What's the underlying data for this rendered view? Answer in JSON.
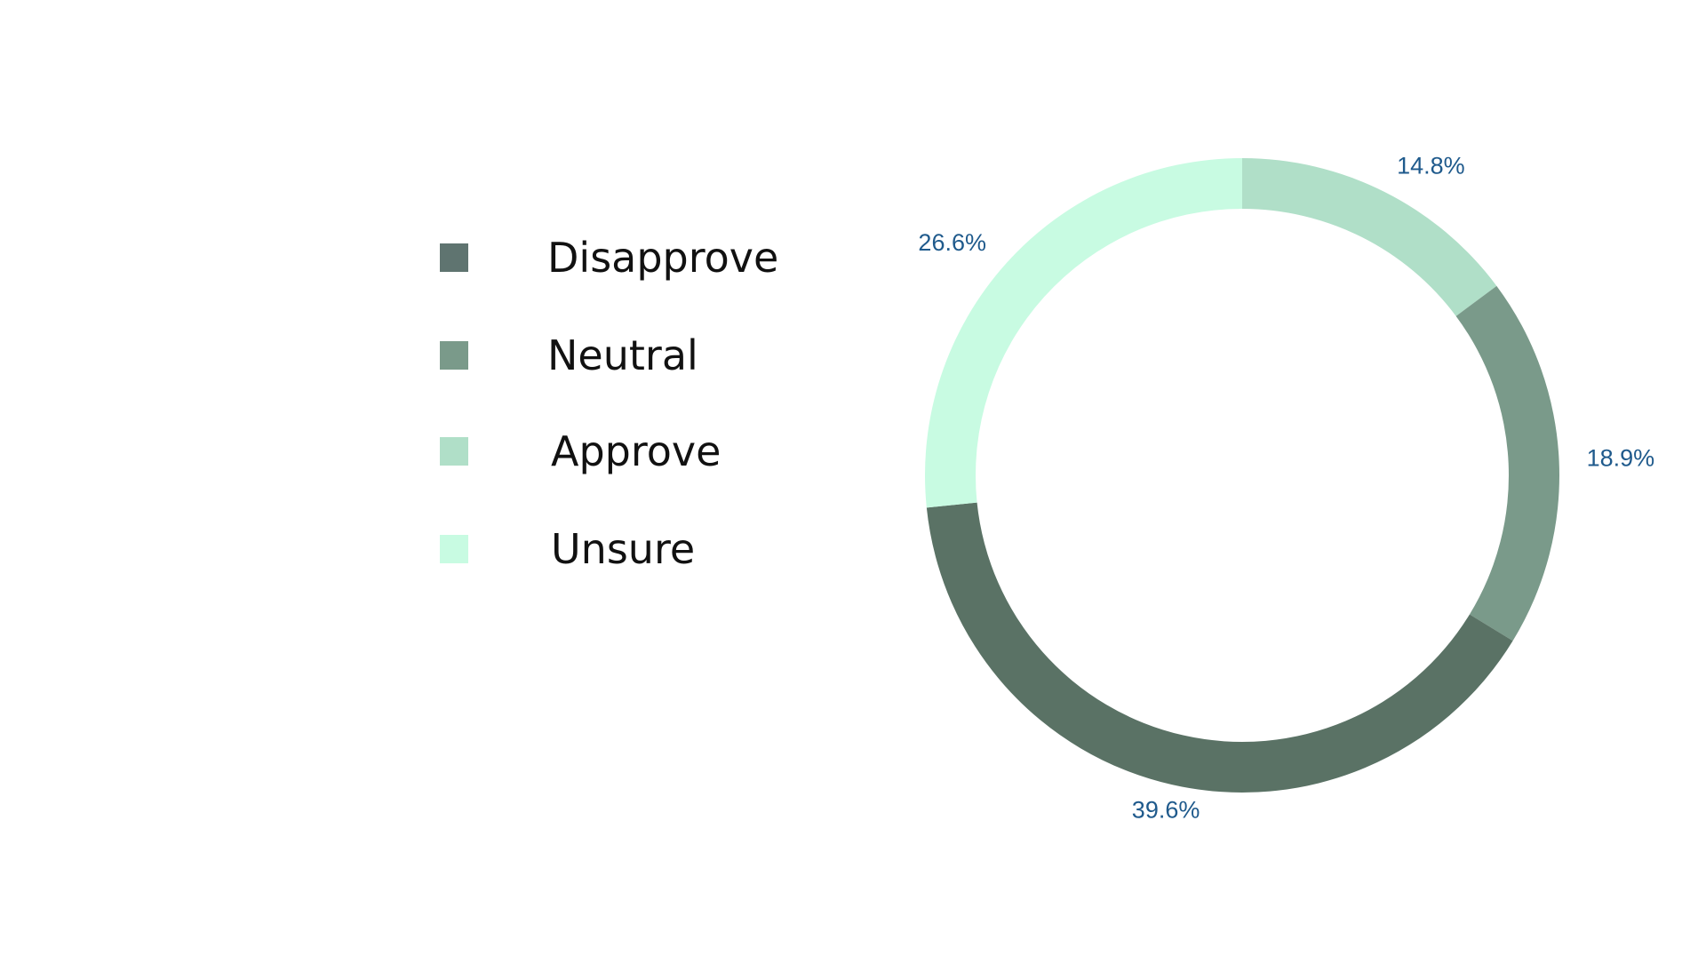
{
  "chart_data": {
    "type": "pie",
    "variant": "donut",
    "title": "",
    "categories": [
      "Disapprove",
      "Neutral",
      "Approve",
      "Unsure"
    ],
    "values": [
      39.6,
      18.9,
      14.8,
      26.6
    ],
    "value_labels": [
      "39.6%",
      "18.9%",
      "14.8%",
      "26.6%"
    ],
    "colors": [
      "#5a7265",
      "#7a9a8a",
      "#b0dfc8",
      "#c8fbe2"
    ],
    "legend_colors": [
      "#5f7470",
      "#7a9a8a",
      "#b0dfc8",
      "#c8fbe2"
    ],
    "label_color": "#1f5a8c",
    "slice_order_clockwise_from_top": [
      "Approve",
      "Neutral",
      "Disapprove",
      "Unsure"
    ],
    "legend_position": "left"
  },
  "legend": {
    "items": [
      {
        "label": "Disapprove",
        "color": "#5f7470"
      },
      {
        "label": "Neutral",
        "color": "#7a9a8a"
      },
      {
        "label": "Approve",
        "color": "#b0dfc8"
      },
      {
        "label": "Unsure",
        "color": "#c8fbe2"
      }
    ]
  }
}
